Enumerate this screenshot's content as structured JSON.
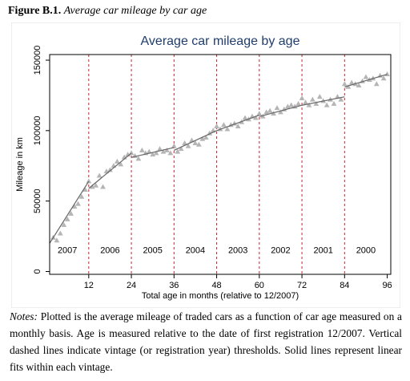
{
  "figure": {
    "label": "Figure B.1.",
    "caption": "Average car mileage by car age"
  },
  "notes": {
    "label": "Notes:",
    "text": "Plotted is the average mileage of traded cars as a function of car age measured on a monthly basis. Age is measured relative to the date of first registration 12/2007. Vertical dashed lines indicate vintage (or registration year) thresholds. Solid lines represent linear fits within each vintage."
  },
  "chart_data": {
    "type": "scatter",
    "title": "Average car mileage by age",
    "xlabel": "Total age in months (relative to 12/2007)",
    "ylabel": "Mileage in km",
    "xlim": [
      1,
      97
    ],
    "ylim": [
      -2000,
      154000
    ],
    "x_ticks": [
      12,
      24,
      36,
      48,
      60,
      72,
      84,
      96
    ],
    "y_ticks": [
      0,
      50000,
      100000,
      150000
    ],
    "grid": false,
    "vintage_thresholds": [
      12,
      24,
      36,
      48,
      60,
      72,
      84
    ],
    "vintage_labels": [
      {
        "label": "2007",
        "x_mid": 6
      },
      {
        "label": "2006",
        "x_mid": 18
      },
      {
        "label": "2005",
        "x_mid": 30
      },
      {
        "label": "2004",
        "x_mid": 42
      },
      {
        "label": "2003",
        "x_mid": 54
      },
      {
        "label": "2002",
        "x_mid": 66
      },
      {
        "label": "2001",
        "x_mid": 78
      },
      {
        "label": "2000",
        "x_mid": 90
      }
    ],
    "series": [
      {
        "marker": "triangle",
        "color": "#b5b5b5",
        "x": [
          2,
          3,
          4,
          5,
          6,
          7,
          8,
          9,
          10,
          11,
          12,
          13,
          14,
          15,
          16,
          17,
          18,
          19,
          20,
          21,
          22,
          23,
          24,
          25,
          26,
          27,
          28,
          29,
          30,
          31,
          32,
          33,
          34,
          35,
          36,
          37,
          38,
          39,
          40,
          41,
          42,
          43,
          44,
          45,
          46,
          47,
          48,
          49,
          50,
          51,
          52,
          53,
          54,
          55,
          56,
          57,
          58,
          59,
          60,
          61,
          62,
          63,
          64,
          65,
          66,
          67,
          68,
          69,
          70,
          71,
          72,
          73,
          74,
          75,
          76,
          77,
          78,
          79,
          80,
          81,
          82,
          83,
          84,
          85,
          86,
          87,
          88,
          89,
          90,
          91,
          92,
          93,
          94,
          95,
          96
        ],
        "y": [
          24000,
          22000,
          27000,
          33000,
          37000,
          41000,
          46000,
          48000,
          53000,
          58000,
          64000,
          60000,
          61000,
          68000,
          60000,
          71000,
          72000,
          75000,
          78000,
          76000,
          81000,
          83000,
          84000,
          82000,
          80000,
          86000,
          84000,
          85000,
          83000,
          84000,
          87000,
          85000,
          86000,
          84000,
          89000,
          85000,
          87000,
          91000,
          89000,
          93000,
          91000,
          90000,
          94000,
          95000,
          98000,
          100000,
          103000,
          101000,
          104000,
          101000,
          104000,
          105000,
          103000,
          106000,
          109000,
          108000,
          110000,
          109000,
          112000,
          110000,
          113000,
          114000,
          112000,
          116000,
          113000,
          115000,
          117000,
          118000,
          117000,
          119000,
          123000,
          120000,
          118000,
          122000,
          119000,
          124000,
          121000,
          118000,
          122000,
          119000,
          124000,
          122000,
          133000,
          131000,
          134000,
          133000,
          132000,
          135000,
          138000,
          136000,
          137000,
          133000,
          139000,
          137000,
          140000
        ]
      }
    ],
    "fits": [
      {
        "x": [
          1,
          12
        ],
        "y": [
          20000,
          64000
        ]
      },
      {
        "x": [
          12,
          24
        ],
        "y": [
          59000,
          84000
        ]
      },
      {
        "x": [
          24,
          36
        ],
        "y": [
          81000,
          88000
        ]
      },
      {
        "x": [
          36,
          48
        ],
        "y": [
          86000,
          100000
        ]
      },
      {
        "x": [
          48,
          60
        ],
        "y": [
          100000,
          111000
        ]
      },
      {
        "x": [
          60,
          72
        ],
        "y": [
          110000,
          118000
        ]
      },
      {
        "x": [
          72,
          84
        ],
        "y": [
          118000,
          124000
        ]
      },
      {
        "x": [
          84,
          96
        ],
        "y": [
          131000,
          140000
        ]
      }
    ],
    "colors": {
      "frame": "#000000",
      "title": "#1f3d6d",
      "threshold": "#cc2233",
      "fit": "#666666",
      "background": "#ffffff"
    }
  }
}
